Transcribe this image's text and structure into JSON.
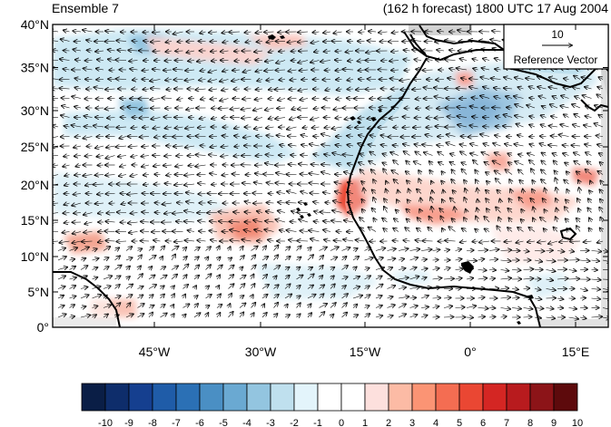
{
  "titles": {
    "left": "Ensemble 7",
    "right": "(162 h forecast) 1800 UTC 17 Aug 2004"
  },
  "map": {
    "lat_labels": [
      "40°N",
      "35°N",
      "30°N",
      "25°N",
      "20°N",
      "15°N",
      "10°N",
      "5°N",
      "0°"
    ],
    "lon_labels": [
      "45°W",
      "30°W",
      "15°W",
      "0°",
      "15°E"
    ],
    "reference_vector": {
      "magnitude_label": "10",
      "label": "Reference Vector"
    }
  },
  "colorbar": {
    "labels": [
      "-10",
      "-9",
      "-8",
      "-7",
      "-6",
      "-5",
      "-4",
      "-3",
      "-2",
      "-1",
      "0",
      "1",
      "2",
      "3",
      "4",
      "5",
      "6",
      "7",
      "8",
      "9",
      "10"
    ],
    "colors": [
      "#0a1e46",
      "#0e2d6b",
      "#153f8f",
      "#1f5ca8",
      "#2b70b5",
      "#4a8fc4",
      "#6aa9d2",
      "#93c5e0",
      "#bfe0ee",
      "#e3f4fb",
      "#ffffff",
      "#ffffff",
      "#fde0dd",
      "#fcbba5",
      "#fb9474",
      "#f46d52",
      "#ea4733",
      "#d42623",
      "#b81b1e",
      "#8c1418",
      "#5d0a0c"
    ]
  },
  "colors": {
    "land": "#ffffff",
    "missing": "#d3d3d3",
    "coast": "#000000",
    "vector": "#000000"
  }
}
